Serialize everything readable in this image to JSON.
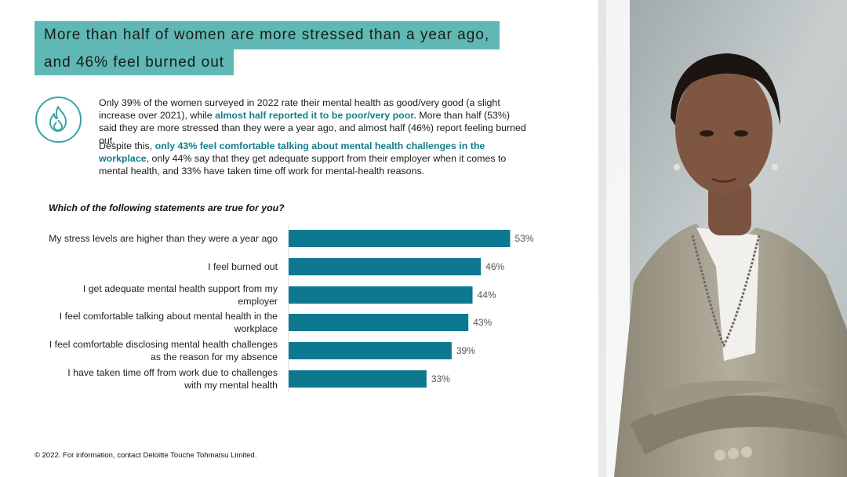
{
  "title": {
    "line1": "More than half of women are more stressed than a year ago,",
    "line2": "and 46% feel burned out"
  },
  "intro": {
    "p1_a": "Only 39% of the women surveyed in 2022 rate their mental health as good/very good (a slight increase over 2021), while ",
    "p1_highlight": "almost half reported it to be poor/very poor.",
    "p1_b": " More than half (53%) said they are more stressed than they were a year ago, and almost half (46%) report feeling burned out.",
    "p2_a": "Despite this, ",
    "p2_highlight": "only 43% feel comfortable talking about mental health challenges in the workplace",
    "p2_b": ", only 44% say that they get adequate support from their employer when it comes to mental health, and 33% have taken time off work for mental-health reasons."
  },
  "question": "Which of the following statements are true for you?",
  "chart_data": {
    "type": "bar",
    "orientation": "horizontal",
    "categories": [
      "My stress levels are higher than they were a year ago",
      "I feel burned out",
      "I get adequate mental health support from my employer",
      "I feel comfortable talking about mental health in the workplace",
      "I feel comfortable disclosing mental health challenges as the reason for my absence",
      "I have taken time off from work due to challenges with my mental health"
    ],
    "label_lines": [
      [
        "My stress levels are higher than they were a year ago"
      ],
      [
        "I feel burned out"
      ],
      [
        "I get adequate mental health support from my",
        "employer"
      ],
      [
        "I feel comfortable talking about mental health in the",
        "workplace"
      ],
      [
        "I feel comfortable disclosing mental health challenges",
        "as the reason for my absence"
      ],
      [
        "I have taken time off from work due to challenges",
        "with my mental health"
      ]
    ],
    "values": [
      53,
      46,
      44,
      43,
      39,
      33
    ],
    "data_labels": [
      "53%",
      "46%",
      "44%",
      "43%",
      "39%",
      "33%"
    ],
    "unit": "%",
    "xlim": [
      0,
      100
    ],
    "bar_color": "#0e7891",
    "grid": false,
    "legend": "none"
  },
  "footer": "© 2022. For information, contact Deloitte Touche Tohmatsu Limited.",
  "colors": {
    "accent": "#5fb8b4",
    "highlight_text": "#137e8b",
    "bar": "#0e7891"
  },
  "icons": {
    "flame": "flame-icon"
  }
}
